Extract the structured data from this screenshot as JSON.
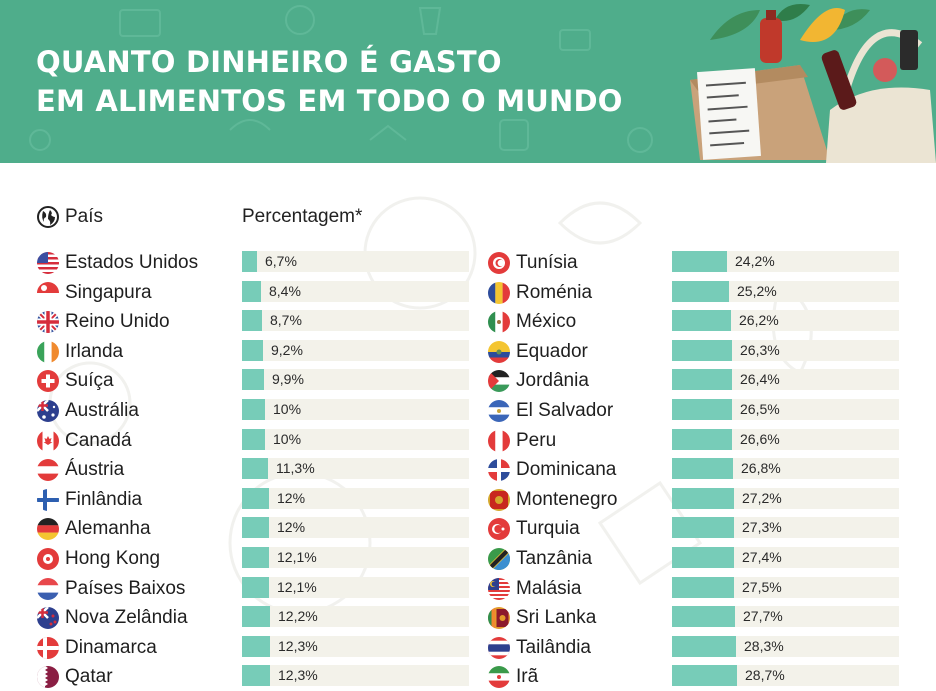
{
  "header": {
    "title_line1": "QUANTO DINHEIRO É GASTO",
    "title_line2": "EM ALIMENTOS EM TODO O MUNDO",
    "background_color": "#4fad8b"
  },
  "columns": {
    "country_header": "País",
    "country_header_icon": "globe-icon",
    "percent_header": "Percentagem*"
  },
  "colors": {
    "bar_fill": "#77ccb8",
    "bar_track": "#f3f2ea"
  },
  "chart_data": {
    "type": "bar",
    "orientation": "horizontal",
    "title": "QUANTO DINHEIRO É GASTO EM ALIMENTOS EM TODO O MUNDO",
    "xlabel": "Percentagem*",
    "ylabel": "País",
    "xlim": [
      0,
      100
    ],
    "columns": [
      {
        "categories": [
          "Estados Unidos",
          "Singapura",
          "Reino Unido",
          "Irlanda",
          "Suíça",
          "Austrália",
          "Canadá",
          "Áustria",
          "Finlândia",
          "Alemanha",
          "Hong Kong",
          "Países Baixos",
          "Nova Zelândia",
          "Dinamarca",
          "Qatar"
        ],
        "values": [
          6.7,
          8.4,
          8.7,
          9.2,
          9.9,
          10,
          10,
          11.3,
          12,
          12,
          12.1,
          12.1,
          12.2,
          12.3,
          12.3
        ],
        "labels": [
          "6,7%",
          "8,4%",
          "8,7%",
          "9,2%",
          "9,9%",
          "10%",
          "10%",
          "11,3%",
          "12%",
          "12%",
          "12,1%",
          "12,1%",
          "12,2%",
          "12,3%",
          "12,3%"
        ]
      },
      {
        "categories": [
          "Tunísia",
          "Roménia",
          "México",
          "Equador",
          "Jordânia",
          "El Salvador",
          "Peru",
          "Dominicana",
          "Montenegro",
          "Turquia",
          "Tanzânia",
          "Malásia",
          "Sri Lanka",
          "Tailândia",
          "Irã"
        ],
        "values": [
          24.2,
          25.2,
          26.2,
          26.3,
          26.4,
          26.5,
          26.6,
          26.8,
          27.2,
          27.3,
          27.4,
          27.5,
          27.7,
          28.3,
          28.7
        ],
        "labels": [
          "24,2%",
          "25,2%",
          "26,2%",
          "26,3%",
          "26,4%",
          "26,5%",
          "26,6%",
          "26,8%",
          "27,2%",
          "27,3%",
          "27,4%",
          "27,5%",
          "27,7%",
          "28,3%",
          "28,7%"
        ]
      }
    ],
    "flags": [
      [
        "flag-usa-icon",
        "flag-singapore-icon",
        "flag-uk-icon",
        "flag-ireland-icon",
        "flag-switzerland-icon",
        "flag-australia-icon",
        "flag-canada-icon",
        "flag-austria-icon",
        "flag-finland-icon",
        "flag-germany-icon",
        "flag-hong-kong-icon",
        "flag-netherlands-icon",
        "flag-new-zealand-icon",
        "flag-denmark-icon",
        "flag-qatar-icon"
      ],
      [
        "flag-tunisia-icon",
        "flag-romania-icon",
        "flag-mexico-icon",
        "flag-ecuador-icon",
        "flag-jordan-icon",
        "flag-el-salvador-icon",
        "flag-peru-icon",
        "flag-dominican-republic-icon",
        "flag-montenegro-icon",
        "flag-turkey-icon",
        "flag-tanzania-icon",
        "flag-malaysia-icon",
        "flag-sri-lanka-icon",
        "flag-thailand-icon",
        "flag-iran-icon"
      ]
    ]
  }
}
